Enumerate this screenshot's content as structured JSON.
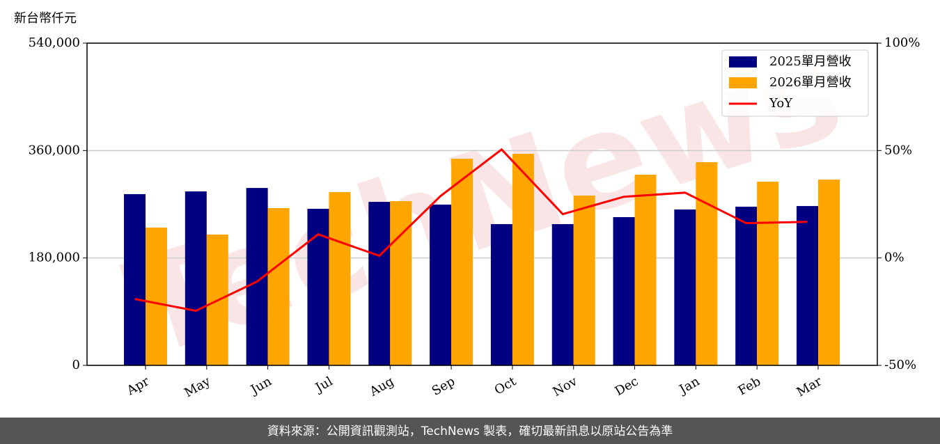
{
  "chart_data": {
    "type": "bar_line",
    "y_label": "新台幣仟元",
    "watermark": "TechNews",
    "footer": "資料來源：公開資訊觀測站，TechNews 製表，確切最新訊息以原站公告為準",
    "categories": [
      "Apr",
      "May",
      "Jun",
      "Jul",
      "Aug",
      "Sep",
      "Oct",
      "Nov",
      "Dec",
      "Jan",
      "Feb",
      "Mar"
    ],
    "series": [
      {
        "name": "2025單月營收",
        "color": "#000080",
        "type": "bar",
        "values": [
          287000,
          291500,
          297300,
          262400,
          274000,
          269400,
          236700,
          236700,
          248400,
          261200,
          265900,
          267000
        ]
      },
      {
        "name": "2026單月營收",
        "color": "#ffa500",
        "type": "bar",
        "values": [
          230900,
          219200,
          263500,
          290300,
          275200,
          346300,
          354500,
          284500,
          319500,
          340500,
          307800,
          311300
        ]
      },
      {
        "name": "YoY",
        "color": "#ff0000",
        "type": "line",
        "axis": "y2",
        "values": [
          -19.1,
          -24.6,
          -11.0,
          11.0,
          1.0,
          28.8,
          50.5,
          20.4,
          28.5,
          30.4,
          16.2,
          16.8
        ]
      }
    ],
    "ylim": [
      0,
      540000
    ],
    "yticks": [
      0,
      {
        "value": 180000,
        "label": "180,000"
      },
      {
        "value": 360000,
        "label": "360,000"
      },
      {
        "value": 540000,
        "label": "540,000"
      }
    ],
    "y2lim": [
      -50,
      100
    ],
    "y2ticks": [
      {
        "value": -50,
        "label": "-50%"
      },
      {
        "value": 0,
        "label": "0%"
      },
      {
        "value": 50,
        "label": "50%"
      },
      {
        "value": 100,
        "label": "100%"
      }
    ],
    "grid": true,
    "legend": "upper right"
  }
}
